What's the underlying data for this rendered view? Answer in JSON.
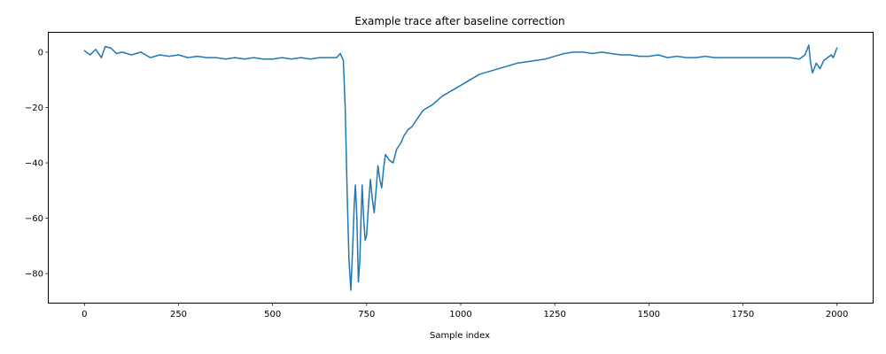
{
  "chart_data": {
    "type": "line",
    "title": "Example trace after baseline correction",
    "xlabel": "Sample index",
    "ylabel": "",
    "xlim": [
      -95,
      2095
    ],
    "ylim": [
      -90.5,
      7
    ],
    "xticks": [
      0,
      250,
      500,
      750,
      1000,
      1250,
      1500,
      1750,
      2000
    ],
    "yticks": [
      0,
      -20,
      -40,
      -60,
      -80
    ],
    "grid": false,
    "series": [
      {
        "color": "#1f77b4",
        "points": [
          [
            0,
            0.5
          ],
          [
            15,
            -1.0
          ],
          [
            30,
            1.0
          ],
          [
            45,
            -2.0
          ],
          [
            55,
            2.0
          ],
          [
            70,
            1.5
          ],
          [
            85,
            -0.5
          ],
          [
            100,
            0.0
          ],
          [
            125,
            -1.0
          ],
          [
            150,
            0.0
          ],
          [
            175,
            -2.0
          ],
          [
            200,
            -1.0
          ],
          [
            225,
            -1.5
          ],
          [
            250,
            -1.0
          ],
          [
            275,
            -2.0
          ],
          [
            300,
            -1.5
          ],
          [
            325,
            -2.0
          ],
          [
            350,
            -2.0
          ],
          [
            375,
            -2.5
          ],
          [
            400,
            -2.0
          ],
          [
            425,
            -2.5
          ],
          [
            450,
            -2.0
          ],
          [
            475,
            -2.5
          ],
          [
            500,
            -2.5
          ],
          [
            525,
            -2.0
          ],
          [
            550,
            -2.5
          ],
          [
            575,
            -2.0
          ],
          [
            600,
            -2.5
          ],
          [
            625,
            -2.0
          ],
          [
            650,
            -2.0
          ],
          [
            670,
            -2.0
          ],
          [
            680,
            -0.5
          ],
          [
            688,
            -3.0
          ],
          [
            693,
            -20.0
          ],
          [
            698,
            -50.0
          ],
          [
            703,
            -75.0
          ],
          [
            708,
            -86.0
          ],
          [
            713,
            -70.0
          ],
          [
            717,
            -55.0
          ],
          [
            720,
            -48.0
          ],
          [
            724,
            -60.0
          ],
          [
            728,
            -83.0
          ],
          [
            732,
            -75.0
          ],
          [
            735,
            -60.0
          ],
          [
            738,
            -48.0
          ],
          [
            742,
            -60.0
          ],
          [
            746,
            -68.0
          ],
          [
            750,
            -66.0
          ],
          [
            755,
            -55.0
          ],
          [
            760,
            -46.0
          ],
          [
            765,
            -53.0
          ],
          [
            770,
            -58.0
          ],
          [
            775,
            -50.0
          ],
          [
            780,
            -41.0
          ],
          [
            785,
            -46.0
          ],
          [
            790,
            -49.0
          ],
          [
            795,
            -42.0
          ],
          [
            800,
            -37.0
          ],
          [
            810,
            -39.0
          ],
          [
            820,
            -40.0
          ],
          [
            830,
            -35.0
          ],
          [
            840,
            -33.0
          ],
          [
            850,
            -30.0
          ],
          [
            860,
            -28.0
          ],
          [
            870,
            -27.0
          ],
          [
            880,
            -25.0
          ],
          [
            890,
            -23.0
          ],
          [
            900,
            -21.0
          ],
          [
            925,
            -19.0
          ],
          [
            950,
            -16.0
          ],
          [
            975,
            -14.0
          ],
          [
            1000,
            -12.0
          ],
          [
            1025,
            -10.0
          ],
          [
            1050,
            -8.0
          ],
          [
            1075,
            -7.0
          ],
          [
            1100,
            -6.0
          ],
          [
            1125,
            -5.0
          ],
          [
            1150,
            -4.0
          ],
          [
            1175,
            -3.5
          ],
          [
            1200,
            -3.0
          ],
          [
            1225,
            -2.5
          ],
          [
            1250,
            -1.5
          ],
          [
            1275,
            -0.5
          ],
          [
            1300,
            0.0
          ],
          [
            1325,
            0.0
          ],
          [
            1350,
            -0.5
          ],
          [
            1375,
            0.0
          ],
          [
            1400,
            -0.5
          ],
          [
            1425,
            -1.0
          ],
          [
            1450,
            -1.0
          ],
          [
            1475,
            -1.5
          ],
          [
            1500,
            -1.5
          ],
          [
            1525,
            -1.0
          ],
          [
            1550,
            -2.0
          ],
          [
            1575,
            -1.5
          ],
          [
            1600,
            -2.0
          ],
          [
            1625,
            -2.0
          ],
          [
            1650,
            -1.5
          ],
          [
            1675,
            -2.0
          ],
          [
            1700,
            -2.0
          ],
          [
            1725,
            -2.0
          ],
          [
            1750,
            -2.0
          ],
          [
            1775,
            -2.0
          ],
          [
            1800,
            -2.0
          ],
          [
            1825,
            -2.0
          ],
          [
            1850,
            -2.0
          ],
          [
            1875,
            -2.0
          ],
          [
            1900,
            -2.5
          ],
          [
            1915,
            -1.0
          ],
          [
            1925,
            2.5
          ],
          [
            1930,
            -4.0
          ],
          [
            1935,
            -7.5
          ],
          [
            1945,
            -4.0
          ],
          [
            1955,
            -6.0
          ],
          [
            1965,
            -3.0
          ],
          [
            1975,
            -2.0
          ],
          [
            1985,
            -1.0
          ],
          [
            1990,
            -2.0
          ],
          [
            2000,
            1.5
          ]
        ]
      }
    ]
  }
}
